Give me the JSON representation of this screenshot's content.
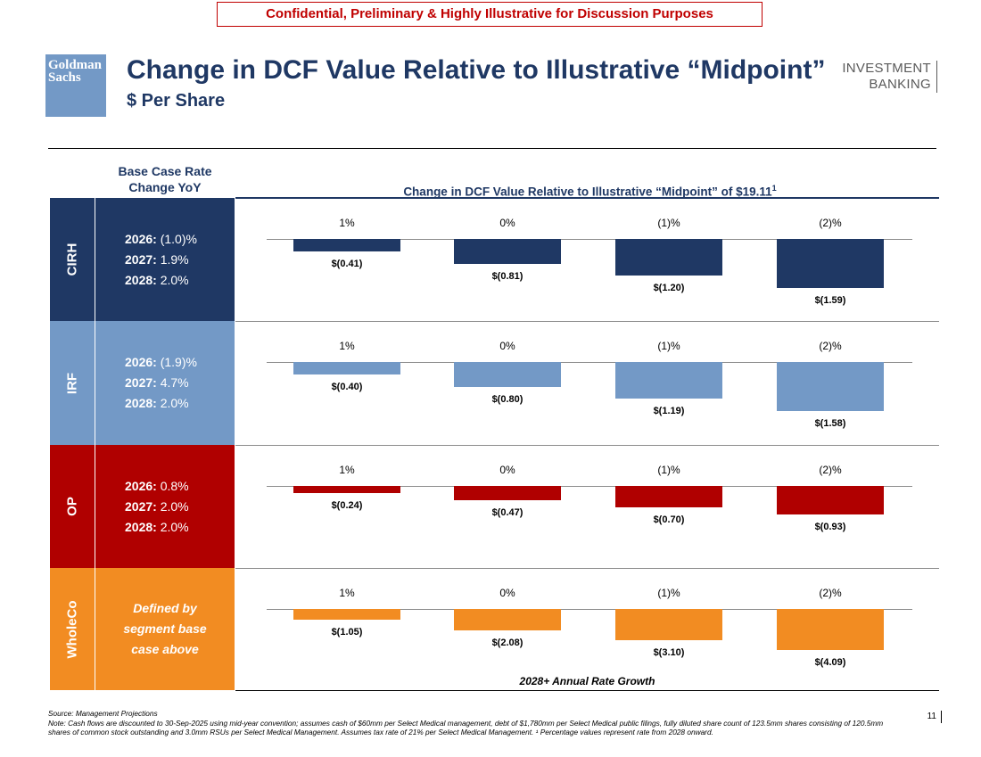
{
  "header": {
    "confidential": "Confidential, Preliminary & Highly Illustrative for Discussion Purposes",
    "logo_line1": "Goldman",
    "logo_line2": "Sachs",
    "title": "Change in DCF Value Relative to Illustrative “Midpoint”",
    "subtitle": "$ Per Share",
    "division_line1": "INVESTMENT",
    "division_line2": "BANKING"
  },
  "left_header": {
    "line1": "Base Case Rate",
    "line2": "Change YoY"
  },
  "chart_title": "Change in DCF Value Relative to Illustrative “Midpoint” of $19.11",
  "chart_title_sup": "1",
  "x_axis_label": "2028+ Annual Rate Growth",
  "colors": {
    "CIRH": "#1f3864",
    "IRF": "#7399c6",
    "OP": "#b00000",
    "WholeCo": "#f28c22"
  },
  "segments": [
    {
      "name": "CIRH",
      "rates": [
        {
          "year": "2026:",
          "value": " (1.0)%"
        },
        {
          "year": "2027:",
          "value": " 1.9%"
        },
        {
          "year": "2028:",
          "value": " 2.0%"
        }
      ]
    },
    {
      "name": "IRF",
      "rates": [
        {
          "year": "2026:",
          "value": " (1.9)%"
        },
        {
          "year": "2027:",
          "value": " 4.7%"
        },
        {
          "year": "2028:",
          "value": " 2.0%"
        }
      ]
    },
    {
      "name": "OP",
      "rates": [
        {
          "year": "2026:",
          "value": " 0.8%"
        },
        {
          "year": "2027:",
          "value": " 2.0%"
        },
        {
          "year": "2028:",
          "value": " 2.0%"
        }
      ]
    },
    {
      "name": "WholeCo",
      "description": [
        "Defined by",
        "segment base",
        "case above"
      ]
    }
  ],
  "chart_data": {
    "type": "bar",
    "categories": [
      "1%",
      "0%",
      "(1)%",
      "(2)%"
    ],
    "series": [
      {
        "name": "CIRH",
        "values": [
          -0.41,
          -0.81,
          -1.2,
          -1.59
        ],
        "labels": [
          "$(0.41)",
          "$(0.81)",
          "$(1.20)",
          "$(1.59)"
        ]
      },
      {
        "name": "IRF",
        "values": [
          -0.4,
          -0.8,
          -1.19,
          -1.58
        ],
        "labels": [
          "$(0.40)",
          "$(0.80)",
          "$(1.19)",
          "$(1.58)"
        ]
      },
      {
        "name": "OP",
        "values": [
          -0.24,
          -0.47,
          -0.7,
          -0.93
        ],
        "labels": [
          "$(0.24)",
          "$(0.47)",
          "$(0.70)",
          "$(0.93)"
        ]
      },
      {
        "name": "WholeCo",
        "values": [
          -1.05,
          -2.08,
          -3.1,
          -4.09
        ],
        "labels": [
          "$(1.05)",
          "$(2.08)",
          "$(3.10)",
          "$(4.09)"
        ]
      }
    ]
  },
  "footer": {
    "source": "Source: Management Projections",
    "note": "Note: Cash flows are discounted to 30-Sep-2025 using mid-year convention; assumes cash of $60mm per Select Medical management, debt of $1,780mm per Select Medical public filings, fully diluted share count of 123.5mm shares consisting of 120.5mm shares of common stock outstanding and 3.0mm RSUs per Select Medical Management. Assumes tax rate of 21% per Select Medical Management. ¹ Percentage values represent rate from 2028 onward.",
    "page": "11"
  }
}
